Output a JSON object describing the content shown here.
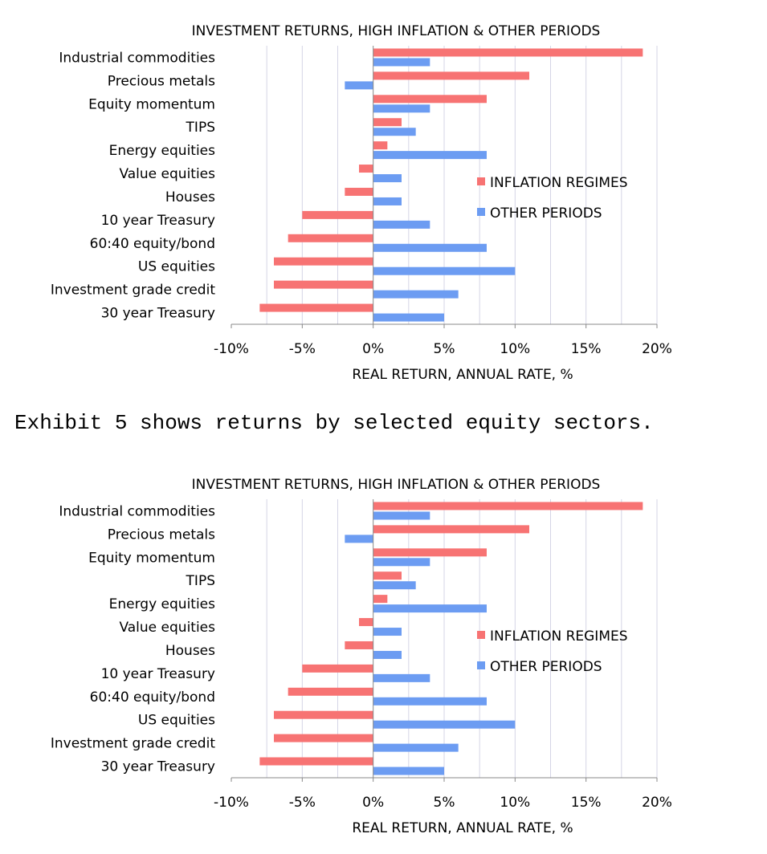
{
  "chart_data": [
    {
      "type": "bar",
      "orientation": "horizontal",
      "title": "INVESTMENT RETURNS, HIGH INFLATION & OTHER PERIODS",
      "xlabel": "REAL RETURN, ANNUAL RATE, %",
      "ylabel": "",
      "xlim": [
        -10,
        20
      ],
      "xticks": [
        -10,
        -5,
        0,
        5,
        10,
        15,
        20
      ],
      "xtick_labels": [
        "-10%",
        "-5%",
        "0%",
        "5%",
        "10%",
        "15%",
        "20%"
      ],
      "grid": true,
      "legend_position": "right-middle",
      "categories": [
        "Industrial commodities",
        "Precious metals",
        "Equity momentum",
        "TIPS",
        "Energy equities",
        "Value equities",
        "Houses",
        "10 year Treasury",
        "60:40 equity/bond",
        "US equities",
        "Investment grade credit",
        "30 year Treasury"
      ],
      "series": [
        {
          "name": "INFLATION REGIMES",
          "color": "#f77373",
          "values": [
            19,
            11,
            8,
            2,
            1,
            -1,
            -2,
            -5,
            -6,
            -7,
            -7,
            -8
          ]
        },
        {
          "name": "OTHER PERIODS",
          "color": "#6c9cf2",
          "values": [
            4,
            -2,
            4,
            3,
            8,
            2,
            2,
            4,
            8,
            10,
            6,
            5
          ]
        }
      ]
    },
    {
      "type": "bar",
      "orientation": "horizontal",
      "title": "INVESTMENT RETURNS, HIGH INFLATION & OTHER PERIODS",
      "xlabel": "REAL RETURN, ANNUAL RATE, %",
      "ylabel": "",
      "xlim": [
        -10,
        20
      ],
      "xticks": [
        -10,
        -5,
        0,
        5,
        10,
        15,
        20
      ],
      "xtick_labels": [
        "-10%",
        "-5%",
        "0%",
        "5%",
        "10%",
        "15%",
        "20%"
      ],
      "grid": true,
      "legend_position": "right-middle",
      "categories": [
        "Industrial commodities",
        "Precious metals",
        "Equity momentum",
        "TIPS",
        "Energy equities",
        "Value equities",
        "Houses",
        "10 year Treasury",
        "60:40 equity/bond",
        "US equities",
        "Investment grade credit",
        "30 year Treasury"
      ],
      "series": [
        {
          "name": "INFLATION REGIMES",
          "color": "#f77373",
          "values": [
            19,
            11,
            8,
            2,
            1,
            -1,
            -2,
            -5,
            -6,
            -7,
            -7,
            -8
          ]
        },
        {
          "name": "OTHER PERIODS",
          "color": "#6c9cf2",
          "values": [
            4,
            -2,
            4,
            3,
            8,
            2,
            2,
            4,
            8,
            10,
            6,
            5
          ]
        }
      ]
    }
  ],
  "caption": "Exhibit 5 shows returns by selected equity sectors."
}
